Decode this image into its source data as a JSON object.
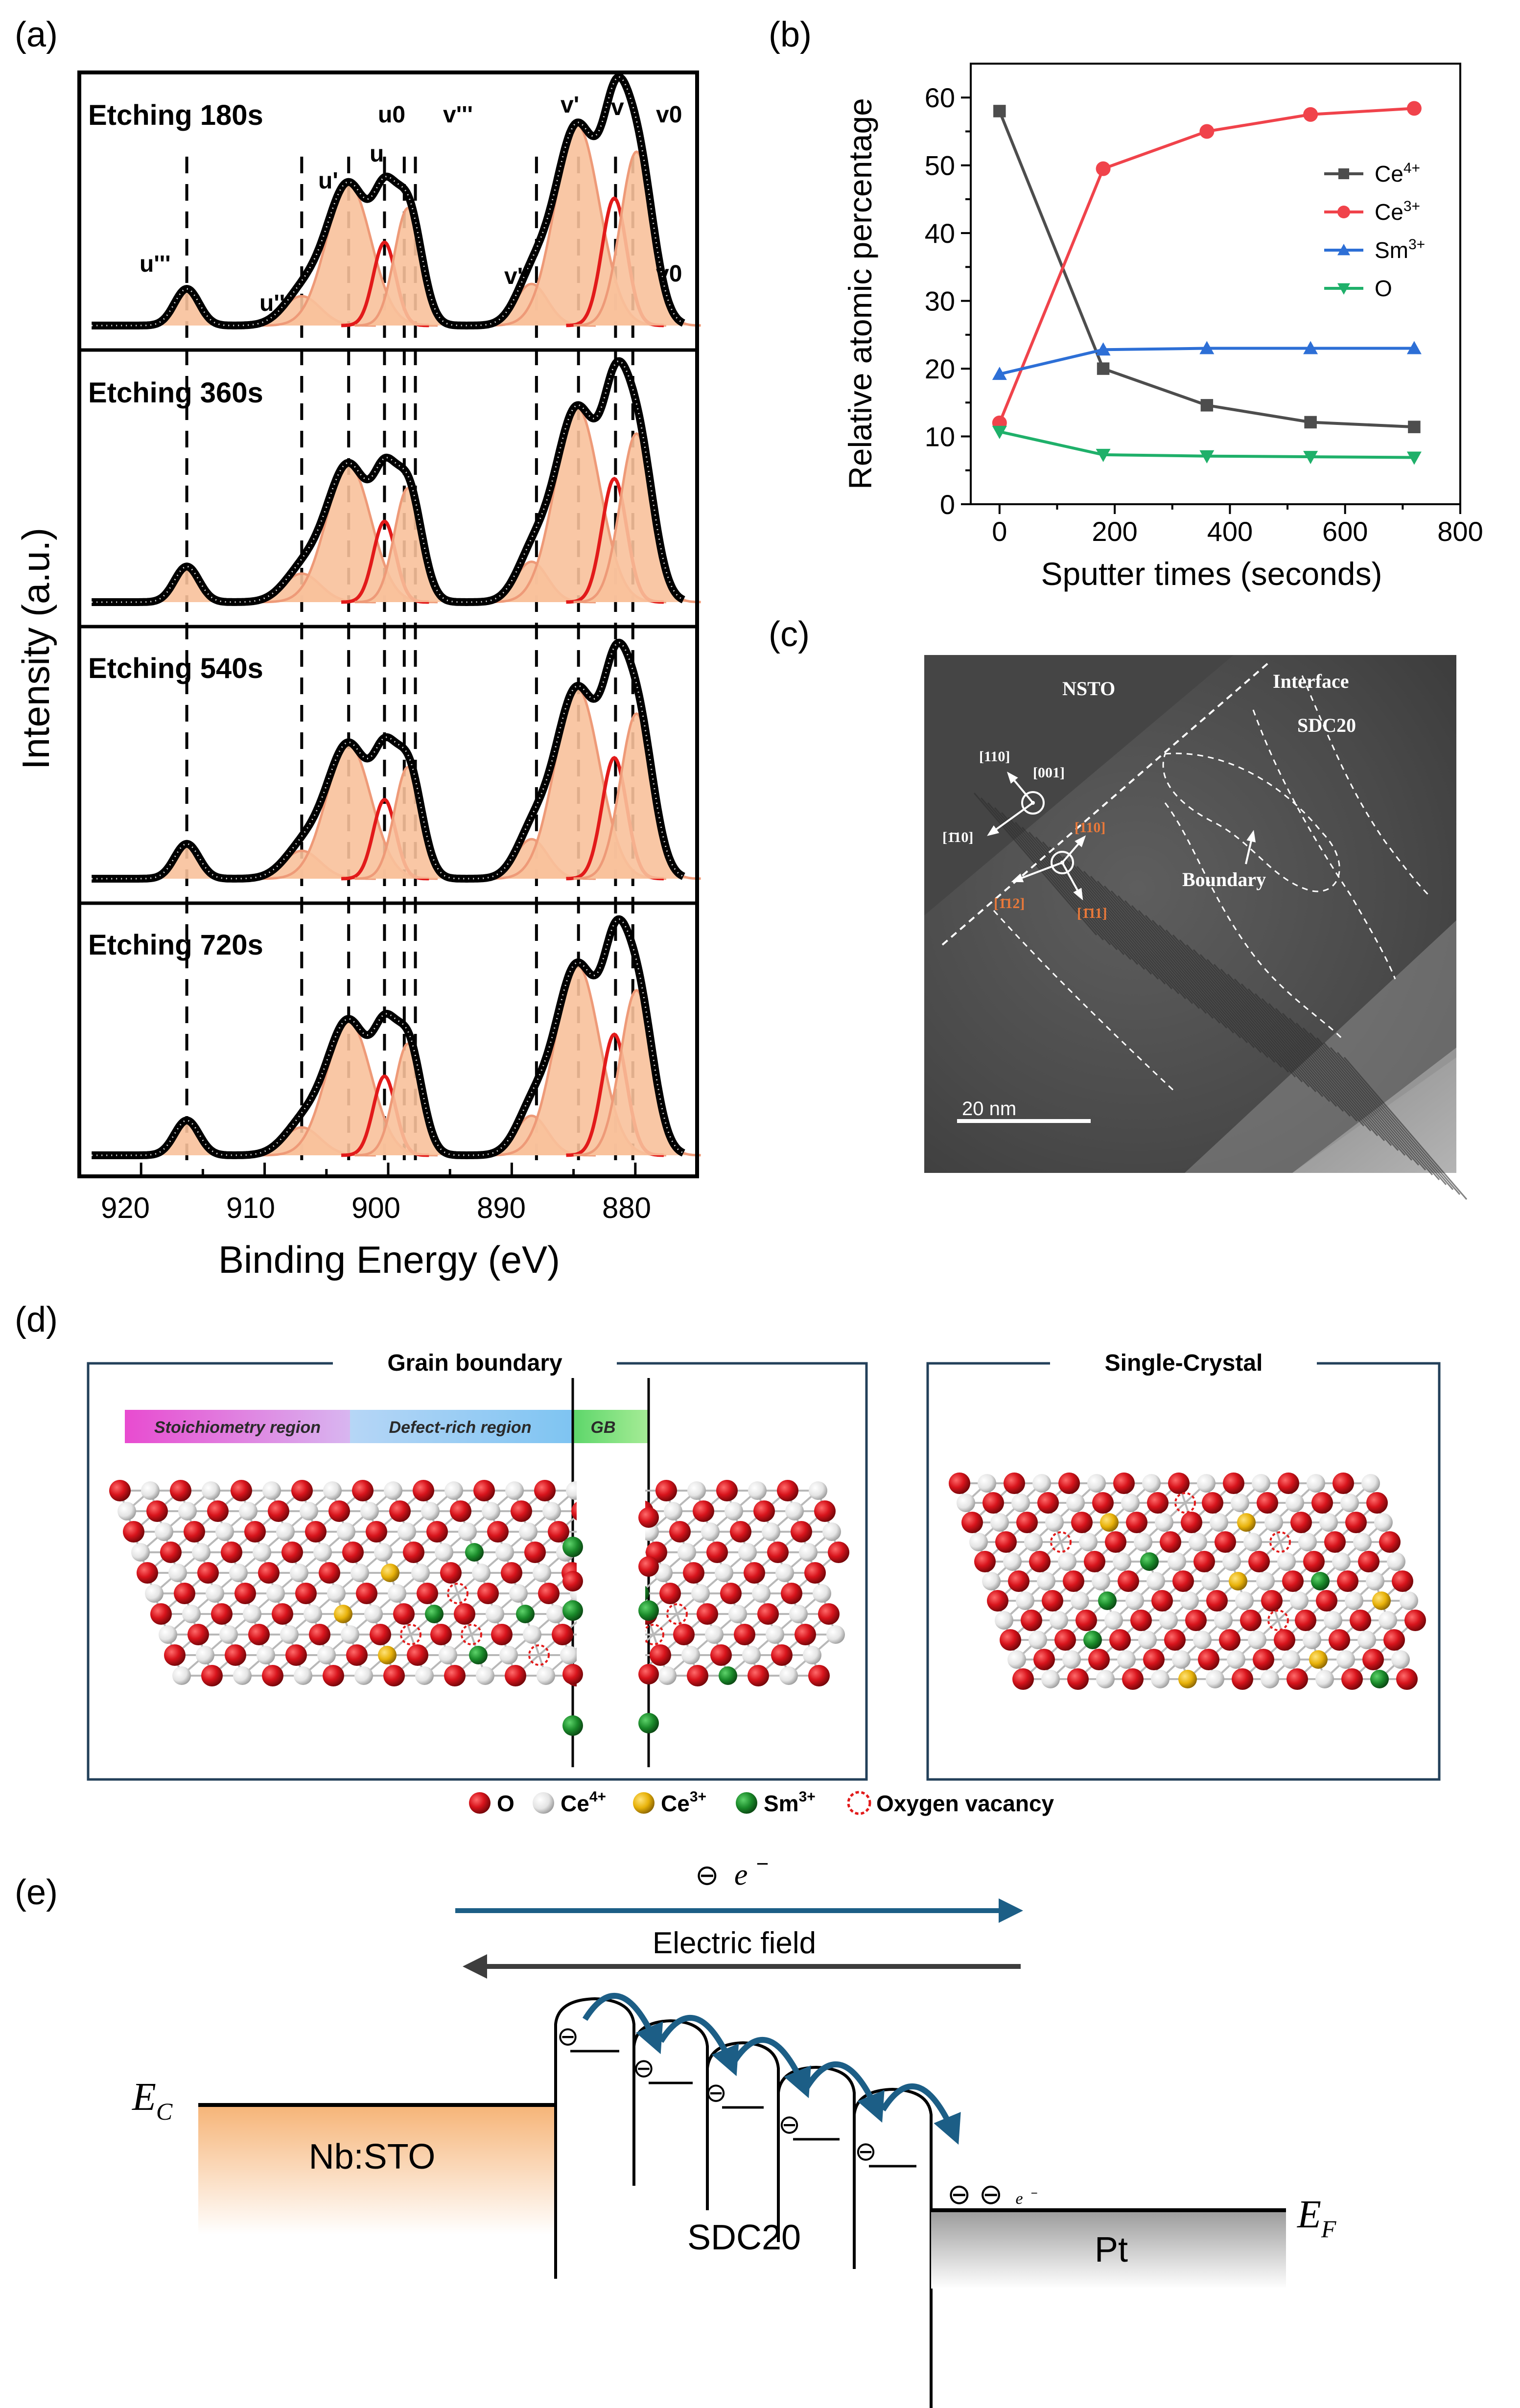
{
  "panels": {
    "a": {
      "label": "(a)"
    },
    "b": {
      "label": "(b)"
    },
    "c": {
      "label": "(c)"
    },
    "d": {
      "label": "(d)"
    },
    "e": {
      "label": "(e)"
    }
  },
  "xps": {
    "xlabel": "Binding Energy (eV)",
    "ylabel": "Intensity (a.u.)",
    "ticks": [
      "920",
      "910",
      "900",
      "890",
      "880"
    ],
    "etching_labels": [
      "Etching 180s",
      "Etching 360s",
      "Etching 540s",
      "Etching 720s"
    ],
    "peak_labels": [
      "u'''",
      "u''",
      "u'",
      "u",
      "u0",
      "v'''",
      "v''",
      "v'",
      "v",
      "v0"
    ],
    "stray_label": "v0"
  },
  "chart_data": {
    "type": "line",
    "title": "",
    "xlabel": "Sputter times (seconds)",
    "ylabel": "Relative atomic percentage",
    "xlim": [
      -50,
      800
    ],
    "ylim": [
      0,
      65
    ],
    "xticks": [
      "0",
      "200",
      "400",
      "600",
      "800"
    ],
    "yticks": [
      "0",
      "10",
      "20",
      "30",
      "40",
      "50",
      "60"
    ],
    "x": [
      0,
      180,
      360,
      540,
      720
    ],
    "series": [
      {
        "name": "Ce4+",
        "base": "Ce",
        "sup": "4+",
        "color": "#4d4d4d",
        "marker": "square",
        "values": [
          58,
          20,
          14.6,
          12.1,
          11.4
        ]
      },
      {
        "name": "Ce3+",
        "base": "Ce",
        "sup": "3+",
        "color": "#f0434b",
        "marker": "circle",
        "values": [
          12,
          49.5,
          55,
          57.5,
          58.4
        ]
      },
      {
        "name": "Sm3+",
        "base": "Sm",
        "sup": "3+",
        "color": "#2d6fd6",
        "marker": "triangle-up",
        "values": [
          19.2,
          22.8,
          23,
          23,
          23
        ]
      },
      {
        "name": "O",
        "base": "O",
        "sup": "",
        "color": "#1fb06a",
        "marker": "triangle-down",
        "values": [
          10.7,
          7.3,
          7.1,
          7,
          6.9
        ]
      }
    ],
    "legend_position": "right"
  },
  "tem": {
    "nsto": "NSTO",
    "interface": "Interface",
    "sdc": "SDC20",
    "boundary": "Boundary",
    "dir_110": "[110]",
    "dir_001": "[001]",
    "dir_1bar10": "[1̄10]",
    "dir_110_orange": "[110]",
    "dir_112": "[1̄12]",
    "dir_111": "[1̄11]",
    "scale": "20 nm"
  },
  "lattice": {
    "gb_title": "Grain boundary",
    "sc_title": "Single-Crystal",
    "region_stoich": "Stoichiometry region",
    "region_defect": "Defect-rich region",
    "region_gb": "GB",
    "legend": {
      "o": "O",
      "ce4_base": "Ce",
      "ce4_sup": "4+",
      "ce3_base": "Ce",
      "ce3_sup": "3+",
      "sm3_base": "Sm",
      "sm3_sup": "3+",
      "vacancy": "Oxygen vacancy"
    },
    "colors": {
      "o": "#c8141c",
      "ce4": "#e6e6e6",
      "ce3": "#e8b20a",
      "sm3": "#1a7a2a"
    }
  },
  "band": {
    "electron_label": "e",
    "electron_sup": "−",
    "electron_sym": "⊖",
    "field_label": "Electric field",
    "ec_base": "E",
    "ec_sub": "C",
    "ef_base": "E",
    "ef_sub": "F",
    "nbsto": "Nb:STO",
    "sdc20": "SDC20",
    "pt": "Pt",
    "charge_sym": "⊖",
    "pt_charge": "⊖ ⊖",
    "pt_e": "e",
    "pt_e_sup": "−"
  },
  "colors": {
    "fill_peak": "#f8c19b",
    "dark_peak": "#ee9a78",
    "red_peak": "#e21a1a",
    "arrow_blue": "#1c5e86",
    "arrow_gray": "#3d3d3d",
    "nbsto_fill": "#f8c08c",
    "pt_fill": "#a0a0a0"
  }
}
